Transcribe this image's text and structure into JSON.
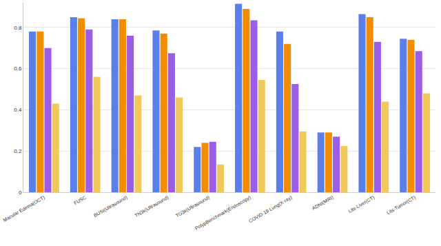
{
  "chart_data": {
    "type": "bar",
    "categories": [
      "Macular Edema(OCT)",
      "FUSC",
      "BUSI(Ultrasound)",
      "TN3k(Ultrasound)",
      "TG3k(Ultrasound)",
      "PolypBenchmark(Endoscopy)",
      "COVID-19 Lung(X-ray)",
      "ADNI(MRI)",
      "Lits-Liver(CT)",
      "Lits-Tumor(CT)"
    ],
    "series": [
      {
        "color": "#5b7fe8",
        "values": [
          0.78,
          0.85,
          0.84,
          0.785,
          0.22,
          0.915,
          0.78,
          0.29,
          0.865,
          0.745
        ]
      },
      {
        "color": "#f28c00",
        "values": [
          0.78,
          0.845,
          0.84,
          0.77,
          0.24,
          0.89,
          0.72,
          0.29,
          0.85,
          0.74
        ]
      },
      {
        "color": "#9b5de5",
        "values": [
          0.7,
          0.79,
          0.76,
          0.675,
          0.245,
          0.835,
          0.525,
          0.27,
          0.73,
          0.685
        ]
      },
      {
        "color": "#f0c95a",
        "values": [
          0.43,
          0.56,
          0.47,
          0.46,
          0.135,
          0.545,
          0.295,
          0.225,
          0.44,
          0.48
        ]
      }
    ],
    "ylim": [
      0,
      0.92
    ],
    "yticks": [
      0,
      0.2,
      0.4,
      0.6,
      0.8
    ],
    "grid": true
  }
}
